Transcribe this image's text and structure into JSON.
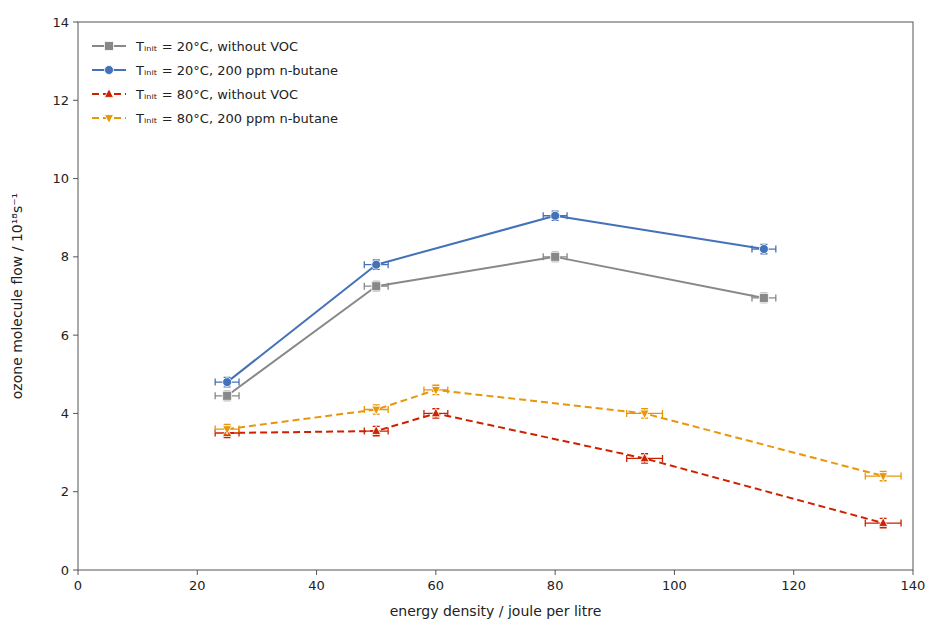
{
  "chart_data": {
    "type": "line",
    "xlabel": "energy density / joule per litre",
    "ylabel": "ozone molecule flow / 10¹⁸s⁻¹",
    "xlim": [
      0,
      140
    ],
    "ylim": [
      0,
      14
    ],
    "xticks": [
      0,
      20,
      40,
      60,
      80,
      100,
      120,
      140
    ],
    "yticks": [
      0,
      2,
      4,
      6,
      8,
      10,
      12,
      14
    ],
    "grid": false,
    "legend": "upper left",
    "series": [
      {
        "name": "Tᵢₙᵢₜ = 20°C, without VOC",
        "color": "#888888",
        "marker": "square",
        "line_style": "solid",
        "x": [
          25,
          50,
          80,
          115
        ],
        "values": [
          4.45,
          7.25,
          8.0,
          6.95
        ],
        "xerr": [
          2,
          2,
          2,
          2
        ],
        "yerr": [
          0.12,
          0.12,
          0.12,
          0.12
        ]
      },
      {
        "name": "Tᵢₙᵢₜ = 20°C, 200 ppm n-butane",
        "color": "#4472b8",
        "marker": "circle",
        "line_style": "solid",
        "x": [
          25,
          50,
          80,
          115
        ],
        "values": [
          4.8,
          7.8,
          9.05,
          8.2
        ],
        "xerr": [
          2,
          2,
          2,
          2
        ],
        "yerr": [
          0.12,
          0.12,
          0.12,
          0.12
        ]
      },
      {
        "name": "Tᵢₙᵢₜ = 80°C, without VOC",
        "color": "#cc2200",
        "marker": "triangle-up",
        "line_style": "dashed",
        "x": [
          25,
          50,
          60,
          95,
          135
        ],
        "values": [
          3.5,
          3.55,
          4.0,
          2.85,
          1.2
        ],
        "xerr": [
          2,
          2,
          2,
          3,
          3
        ],
        "yerr": [
          0.12,
          0.12,
          0.12,
          0.12,
          0.12
        ]
      },
      {
        "name": "Tᵢₙᵢₜ = 80°C, 200 ppm n-butane",
        "color": "#e8960a",
        "marker": "triangle-down",
        "line_style": "dashed",
        "x": [
          25,
          50,
          60,
          95,
          135
        ],
        "values": [
          3.6,
          4.1,
          4.6,
          4.0,
          2.4
        ],
        "xerr": [
          2,
          2,
          2,
          3,
          3
        ],
        "yerr": [
          0.12,
          0.12,
          0.12,
          0.12,
          0.12
        ]
      }
    ]
  }
}
